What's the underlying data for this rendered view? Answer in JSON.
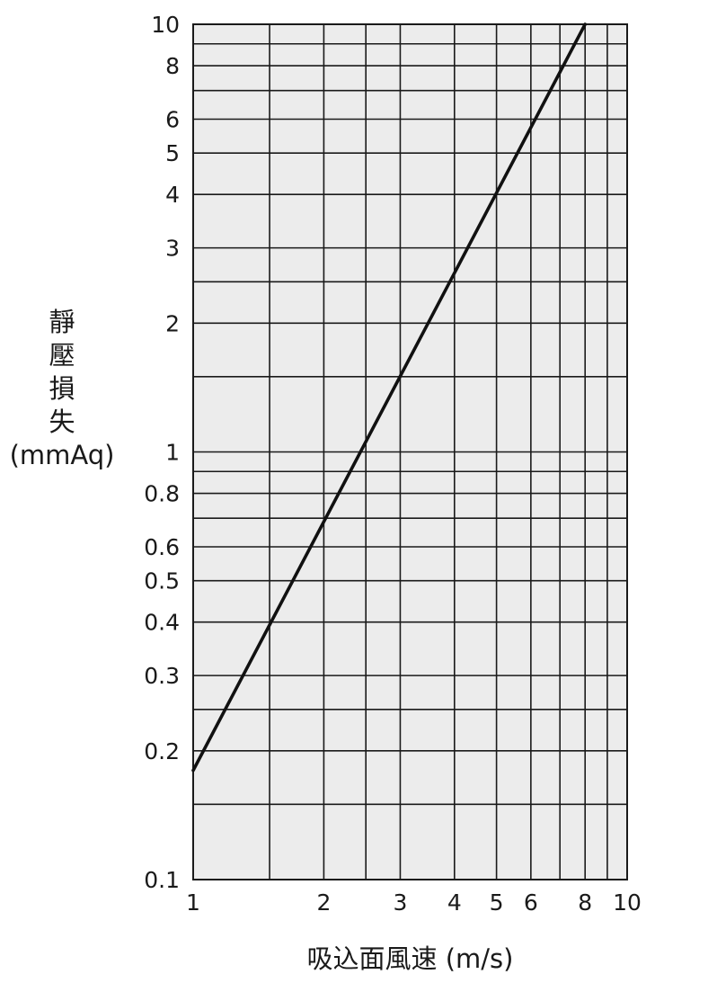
{
  "chart_data": {
    "type": "line",
    "scale": {
      "x": "log",
      "y": "log"
    },
    "xlim": [
      1,
      10
    ],
    "ylim": [
      0.1,
      10
    ],
    "grid": true,
    "xlabel": "吸込面風速 (m/s)",
    "ylabel": "靜壓損失",
    "ylabel_unit": "(mmAq)",
    "x_ticks": [
      1,
      2,
      3,
      4,
      5,
      6,
      8,
      10
    ],
    "x_tick_labels": [
      "1",
      "2",
      "3",
      "4",
      "5",
      "6",
      "8",
      "10"
    ],
    "x_grid": [
      1.5,
      2,
      2.5,
      3,
      4,
      5,
      6,
      7,
      8,
      9,
      10
    ],
    "y_ticks": [
      0.1,
      0.2,
      0.3,
      0.4,
      0.5,
      0.6,
      0.8,
      1,
      2,
      3,
      4,
      5,
      6,
      8,
      10
    ],
    "y_tick_labels": [
      "0.1",
      "0.2",
      "0.3",
      "0.4",
      "0.5",
      "0.6",
      "0.8",
      "1",
      "2",
      "3",
      "4",
      "5",
      "6",
      "8",
      "10"
    ],
    "y_grid": [
      0.15,
      0.2,
      0.25,
      0.3,
      0.4,
      0.5,
      0.6,
      0.7,
      0.8,
      0.9,
      1,
      1.5,
      2,
      2.5,
      3,
      4,
      5,
      6,
      7,
      8,
      9
    ],
    "series": [
      {
        "x": [
          1,
          8
        ],
        "y": [
          0.18,
          10
        ],
        "color": "#111111"
      }
    ]
  }
}
